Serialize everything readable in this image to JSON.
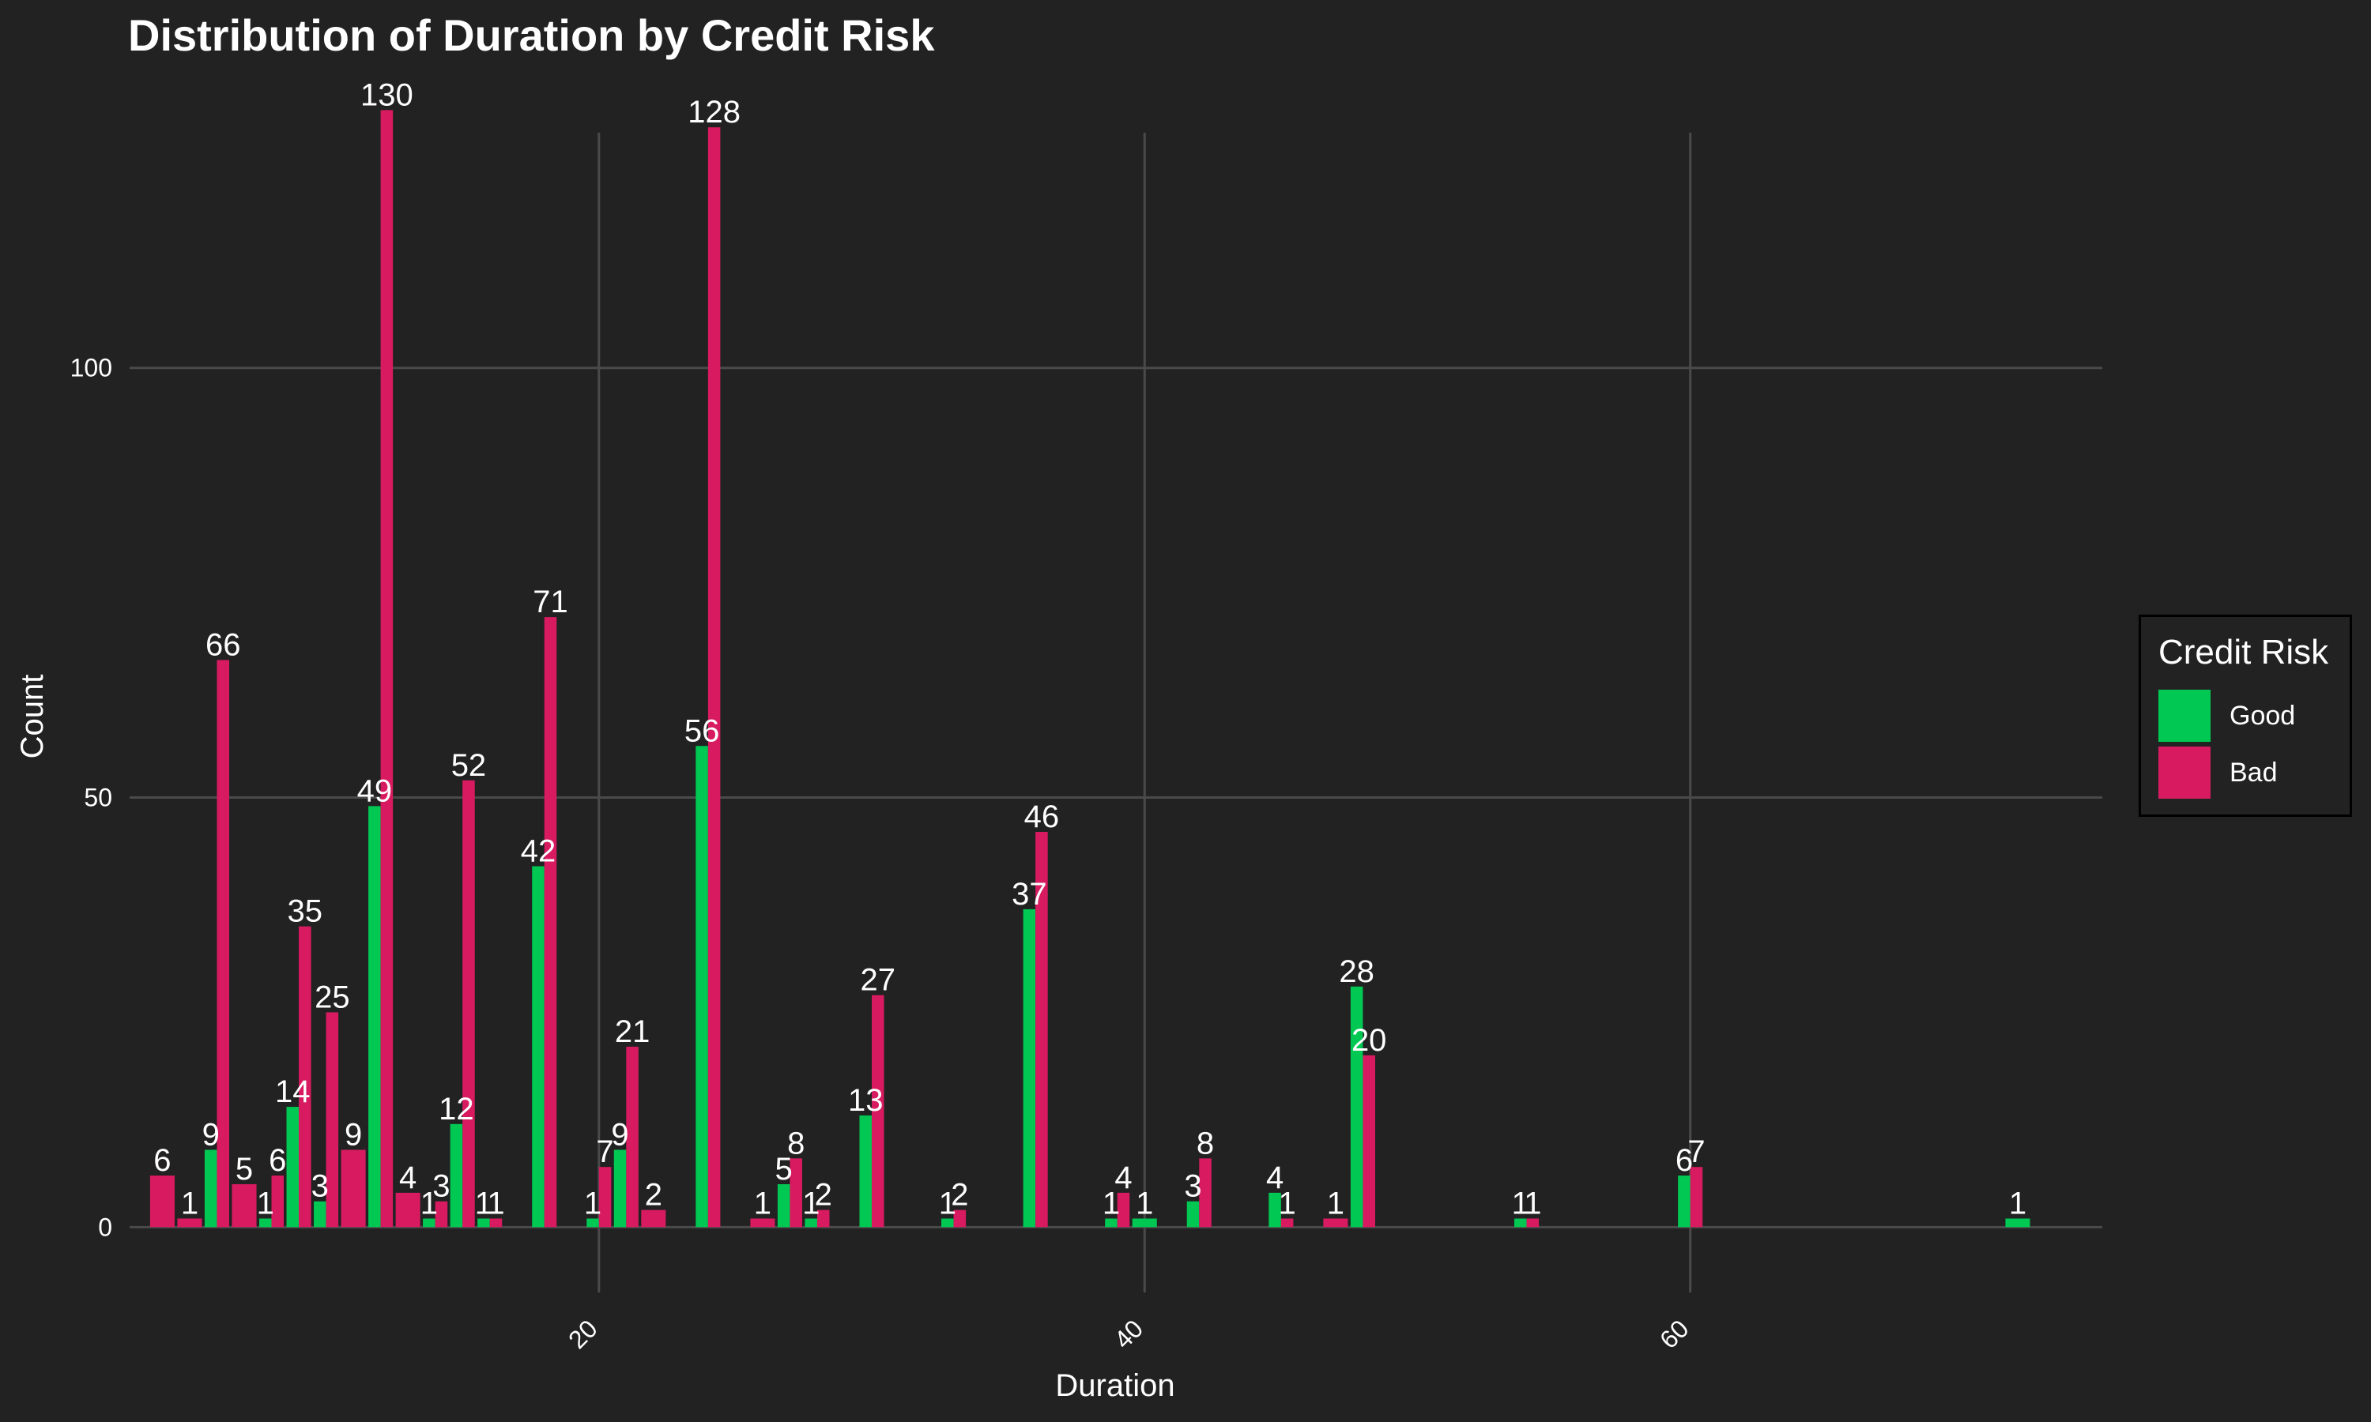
{
  "chart_data": {
    "type": "bar",
    "title": "Distribution of Duration by Credit Risk",
    "xlabel": "Duration",
    "ylabel": "Count",
    "xlim": [
      2.8,
      75.1
    ],
    "ylim": [
      -7.6,
      137.3
    ],
    "x_ticks": [
      20,
      40,
      60
    ],
    "y_ticks": [
      0,
      50,
      100
    ],
    "grid": true,
    "legend": {
      "title": "Credit Risk",
      "position": "right"
    },
    "series": [
      {
        "name": "Good",
        "color": "#00C853",
        "points": [
          {
            "x": 6,
            "y": 9
          },
          {
            "x": 8,
            "y": 1
          },
          {
            "x": 9,
            "y": 14
          },
          {
            "x": 10,
            "y": 3
          },
          {
            "x": 12,
            "y": 49
          },
          {
            "x": 14,
            "y": 1
          },
          {
            "x": 15,
            "y": 12
          },
          {
            "x": 16,
            "y": 1
          },
          {
            "x": 18,
            "y": 42
          },
          {
            "x": 20,
            "y": 1
          },
          {
            "x": 21,
            "y": 9
          },
          {
            "x": 24,
            "y": 56
          },
          {
            "x": 27,
            "y": 5
          },
          {
            "x": 28,
            "y": 1
          },
          {
            "x": 30,
            "y": 13
          },
          {
            "x": 33,
            "y": 1
          },
          {
            "x": 36,
            "y": 37
          },
          {
            "x": 39,
            "y": 1
          },
          {
            "x": 40,
            "y": 1
          },
          {
            "x": 42,
            "y": 3
          },
          {
            "x": 45,
            "y": 4
          },
          {
            "x": 48,
            "y": 28
          },
          {
            "x": 54,
            "y": 1
          },
          {
            "x": 60,
            "y": 6
          },
          {
            "x": 72,
            "y": 1
          }
        ]
      },
      {
        "name": "Bad",
        "color": "#D81B60",
        "points": [
          {
            "x": 4,
            "y": 6
          },
          {
            "x": 5,
            "y": 1
          },
          {
            "x": 6,
            "y": 66
          },
          {
            "x": 7,
            "y": 5
          },
          {
            "x": 8,
            "y": 6
          },
          {
            "x": 9,
            "y": 35
          },
          {
            "x": 10,
            "y": 25
          },
          {
            "x": 11,
            "y": 9
          },
          {
            "x": 12,
            "y": 130
          },
          {
            "x": 13,
            "y": 4
          },
          {
            "x": 14,
            "y": 3
          },
          {
            "x": 15,
            "y": 52
          },
          {
            "x": 16,
            "y": 1
          },
          {
            "x": 18,
            "y": 71
          },
          {
            "x": 20,
            "y": 7
          },
          {
            "x": 21,
            "y": 21
          },
          {
            "x": 22,
            "y": 2
          },
          {
            "x": 24,
            "y": 128
          },
          {
            "x": 26,
            "y": 1
          },
          {
            "x": 27,
            "y": 8
          },
          {
            "x": 28,
            "y": 2
          },
          {
            "x": 30,
            "y": 27
          },
          {
            "x": 33,
            "y": 2
          },
          {
            "x": 36,
            "y": 46
          },
          {
            "x": 39,
            "y": 4
          },
          {
            "x": 42,
            "y": 8
          },
          {
            "x": 45,
            "y": 1
          },
          {
            "x": 47,
            "y": 1
          },
          {
            "x": 48,
            "y": 20
          },
          {
            "x": 54,
            "y": 1
          },
          {
            "x": 60,
            "y": 7
          }
        ]
      }
    ]
  }
}
